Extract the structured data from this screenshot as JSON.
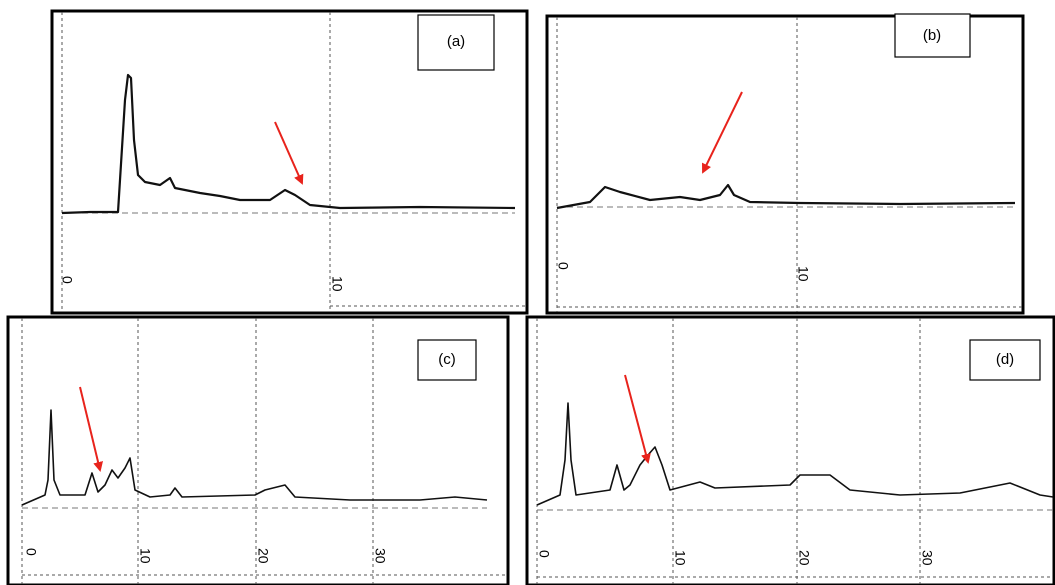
{
  "panels": [
    {
      "label": "(a)",
      "x_ticks": [
        "0",
        "10"
      ]
    },
    {
      "label": "(b)",
      "x_ticks": [
        "0",
        "10"
      ]
    },
    {
      "label": "(c)",
      "x_ticks": [
        "0",
        "10",
        "20",
        "30"
      ]
    },
    {
      "label": "(d)",
      "x_ticks": [
        "0",
        "10",
        "20",
        "30"
      ]
    }
  ]
}
